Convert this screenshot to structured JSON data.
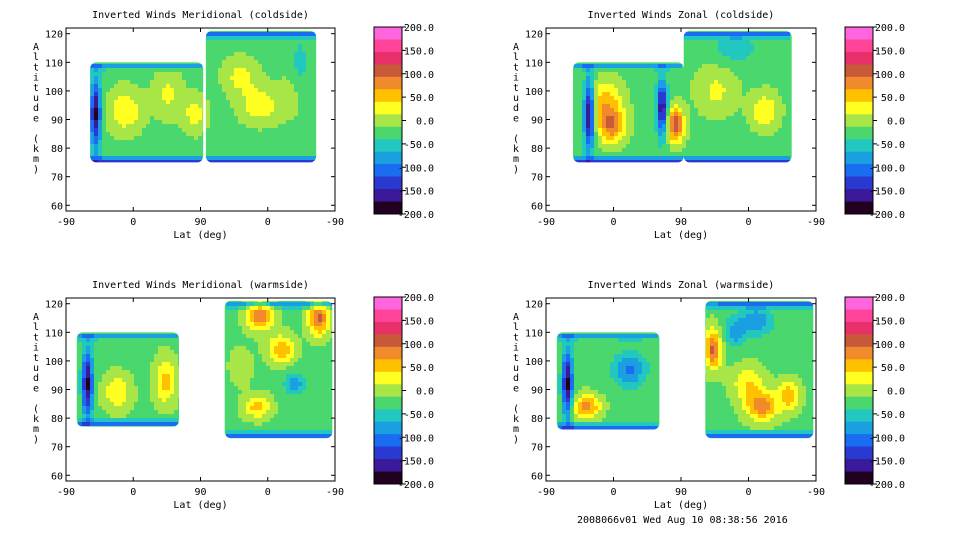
{
  "footer": "2008066v01 Wed Aug 10 08:38:56 2016",
  "colorbar": {
    "labels": [
      "200.0",
      "150.0",
      "100.0",
      "50.0",
      "0.0",
      "-50.0",
      "-100.0",
      "-150.0",
      "-200.0"
    ],
    "range": [
      -200,
      200
    ],
    "colors": [
      "#ff66dd",
      "#ff4499",
      "#e8306a",
      "#c85a3a",
      "#f08a2a",
      "#ffc000",
      "#ffff22",
      "#a8e648",
      "#4ad86e",
      "#22c8c0",
      "#1aa0e0",
      "#1a6cf0",
      "#2a3ad0",
      "#3a1a9a",
      "#220020"
    ]
  },
  "chart_data": [
    {
      "type": "contour",
      "title": "Inverted Winds Meridional (coldside)",
      "xlabel": "Lat (deg)",
      "ylabel": "Altitude (km)",
      "xticks": [
        "-90",
        "0",
        "90",
        "0",
        "-90"
      ],
      "yticks": [
        "60",
        "70",
        "80",
        "90",
        "100",
        "110",
        "120"
      ],
      "ylim": [
        58,
        122
      ],
      "colorbar_ticks": [
        200,
        150,
        100,
        50,
        0,
        -50,
        -100,
        -150,
        -200
      ]
    },
    {
      "type": "contour",
      "title": "Inverted Winds Zonal (coldside)",
      "xlabel": "Lat (deg)",
      "ylabel": "Altitude (km)",
      "xticks": [
        "-90",
        "0",
        "90",
        "0",
        "-90"
      ],
      "yticks": [
        "60",
        "70",
        "80",
        "90",
        "100",
        "110",
        "120"
      ],
      "ylim": [
        58,
        122
      ],
      "colorbar_ticks": [
        200,
        150,
        100,
        50,
        0,
        -50,
        -100,
        -150,
        -200
      ]
    },
    {
      "type": "contour",
      "title": "Inverted Winds Meridional (warmside)",
      "xlabel": "Lat (deg)",
      "ylabel": "Altitude (km)",
      "xticks": [
        "-90",
        "0",
        "90",
        "0",
        "-90"
      ],
      "yticks": [
        "60",
        "70",
        "80",
        "90",
        "100",
        "110",
        "120"
      ],
      "ylim": [
        58,
        122
      ],
      "colorbar_ticks": [
        200,
        150,
        100,
        50,
        0,
        -50,
        -100,
        -150,
        -200
      ]
    },
    {
      "type": "contour",
      "title": "Inverted Winds Zonal (warmside)",
      "xlabel": "Lat (deg)",
      "ylabel": "Altitude (km)",
      "xticks": [
        "-90",
        "0",
        "90",
        "0",
        "-90"
      ],
      "yticks": [
        "60",
        "70",
        "80",
        "90",
        "100",
        "110",
        "120"
      ],
      "ylim": [
        58,
        122
      ],
      "colorbar_ticks": [
        200,
        150,
        100,
        50,
        0,
        -50,
        -100,
        -150,
        -200
      ]
    }
  ]
}
